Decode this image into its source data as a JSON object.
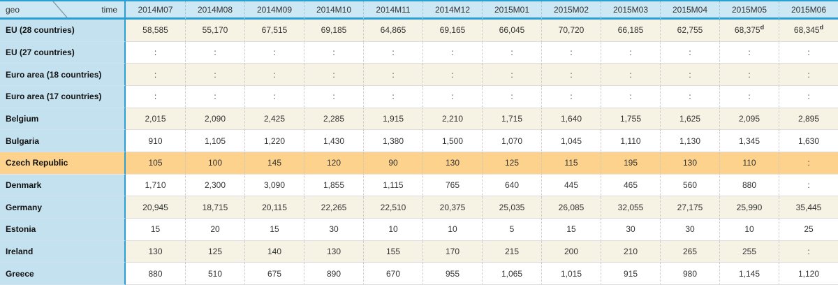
{
  "header": {
    "corner_left": "geo",
    "corner_right": "time",
    "columns": [
      "2014M07",
      "2014M08",
      "2014M09",
      "2014M10",
      "2014M11",
      "2014M12",
      "2015M01",
      "2015M02",
      "2015M03",
      "2015M04",
      "2015M05",
      "2015M06"
    ]
  },
  "rows": [
    {
      "label": "EU (28 countries)",
      "values": [
        "58,585",
        "55,170",
        "67,515",
        "69,185",
        "64,865",
        "69,165",
        "66,045",
        "70,720",
        "66,185",
        "62,755",
        "68,375",
        "68,345"
      ],
      "flags": {
        "10": "d",
        "11": "d"
      },
      "highlight": false
    },
    {
      "label": "EU (27 countries)",
      "values": [
        ":",
        ":",
        ":",
        ":",
        ":",
        ":",
        ":",
        ":",
        ":",
        ":",
        ":",
        ":"
      ],
      "highlight": false
    },
    {
      "label": "Euro area (18 countries)",
      "values": [
        ":",
        ":",
        ":",
        ":",
        ":",
        ":",
        ":",
        ":",
        ":",
        ":",
        ":",
        ":"
      ],
      "highlight": false
    },
    {
      "label": "Euro area (17 countries)",
      "values": [
        ":",
        ":",
        ":",
        ":",
        ":",
        ":",
        ":",
        ":",
        ":",
        ":",
        ":",
        ":"
      ],
      "highlight": false
    },
    {
      "label": "Belgium",
      "values": [
        "2,015",
        "2,090",
        "2,425",
        "2,285",
        "1,915",
        "2,210",
        "1,715",
        "1,640",
        "1,755",
        "1,625",
        "2,095",
        "2,895"
      ],
      "highlight": false
    },
    {
      "label": "Bulgaria",
      "values": [
        "910",
        "1,105",
        "1,220",
        "1,430",
        "1,380",
        "1,500",
        "1,070",
        "1,045",
        "1,110",
        "1,130",
        "1,345",
        "1,630"
      ],
      "highlight": false
    },
    {
      "label": "Czech Republic",
      "values": [
        "105",
        "100",
        "145",
        "120",
        "90",
        "130",
        "125",
        "115",
        "195",
        "130",
        "110",
        ":"
      ],
      "highlight": true
    },
    {
      "label": "Denmark",
      "values": [
        "1,710",
        "2,300",
        "3,090",
        "1,855",
        "1,115",
        "765",
        "640",
        "445",
        "465",
        "560",
        "880",
        ":"
      ],
      "highlight": false
    },
    {
      "label": "Germany",
      "values": [
        "20,945",
        "18,715",
        "20,115",
        "22,265",
        "22,510",
        "20,375",
        "25,035",
        "26,085",
        "32,055",
        "27,175",
        "25,990",
        "35,445"
      ],
      "highlight": false
    },
    {
      "label": "Estonia",
      "values": [
        "15",
        "20",
        "15",
        "30",
        "10",
        "10",
        "5",
        "15",
        "30",
        "30",
        "10",
        "25"
      ],
      "highlight": false
    },
    {
      "label": "Ireland",
      "values": [
        "130",
        "125",
        "140",
        "130",
        "155",
        "170",
        "215",
        "200",
        "210",
        "265",
        "255",
        ":"
      ],
      "highlight": false
    },
    {
      "label": "Greece",
      "values": [
        "880",
        "510",
        "675",
        "890",
        "670",
        "955",
        "1,065",
        "1,015",
        "915",
        "980",
        "1,145",
        "1,120"
      ],
      "highlight": false
    }
  ],
  "colors": {
    "accent_blue": "#2b9fd2",
    "header_bg": "#cde8f5",
    "label_bg": "#c4e1ef",
    "cream_bg": "#f6f3e4",
    "highlight_bg": "#fcd28c"
  }
}
